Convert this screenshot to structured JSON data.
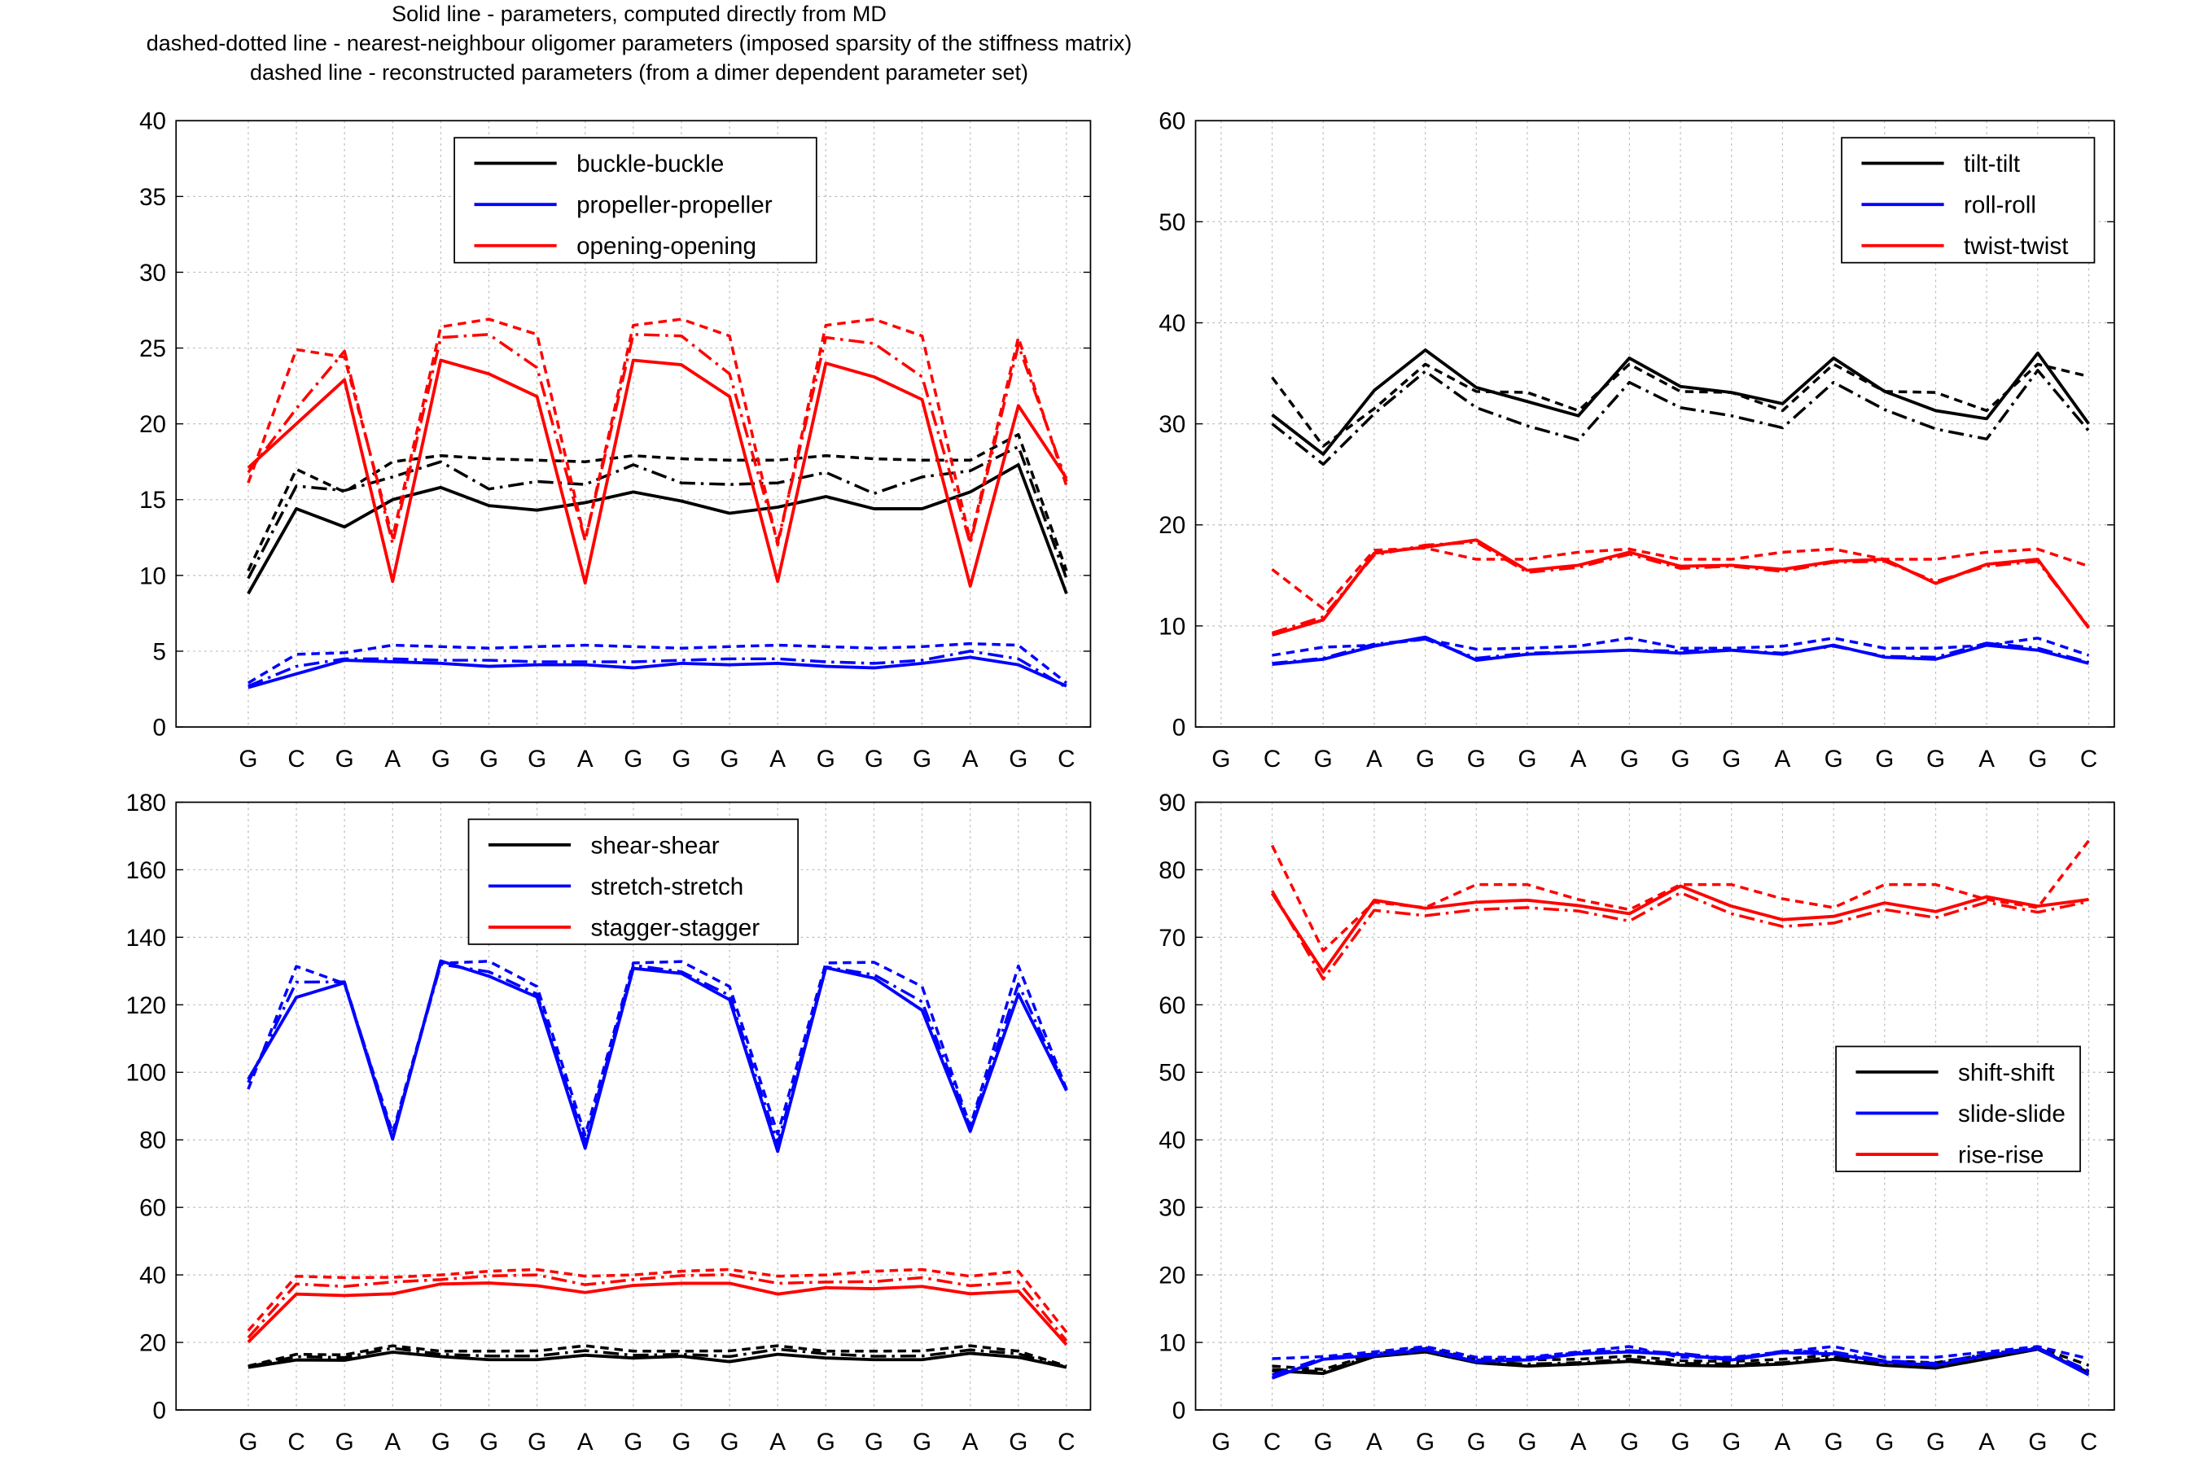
{
  "header": {
    "line1": "Solid line - parameters, computed directly from MD",
    "line2": "dashed-dotted line - nearest-neighbour oligomer parameters (imposed sparsity of the stiffness matrix)",
    "line3": "dashed line - reconstructed parameters (from a dimer dependent parameter set)"
  },
  "colors": {
    "black": "#000000",
    "blue": "#0000ff",
    "red": "#ff0000",
    "grid": "#bbbbbb"
  },
  "chart_data": [
    {
      "type": "line",
      "ylim": [
        0,
        40
      ],
      "yticks": [
        0,
        5,
        10,
        15,
        20,
        25,
        30,
        35,
        40
      ],
      "categories": [
        "G",
        "C",
        "G",
        "A",
        "G",
        "G",
        "G",
        "A",
        "G",
        "G",
        "G",
        "A",
        "G",
        "G",
        "G",
        "A",
        "G",
        "C"
      ],
      "x_start": 1,
      "grid": true,
      "legend_position": "top-center",
      "legend": [
        "buckle-buckle",
        "propeller-propeller",
        "opening-opening"
      ],
      "series": [
        {
          "name": "buckle-buckle",
          "style": "solid",
          "color": "black",
          "values": [
            8.8,
            14.4,
            13.2,
            15.0,
            15.8,
            14.6,
            14.3,
            14.8,
            15.5,
            14.9,
            14.1,
            14.5,
            15.2,
            14.4,
            14.4,
            15.5,
            17.3,
            8.8
          ]
        },
        {
          "name": "buckle-buckle",
          "style": "dashdot",
          "color": "black",
          "values": [
            9.8,
            15.9,
            15.6,
            16.5,
            17.5,
            15.7,
            16.2,
            16.0,
            17.3,
            16.1,
            16.0,
            16.1,
            16.8,
            15.4,
            16.5,
            16.9,
            18.5,
            9.8
          ]
        },
        {
          "name": "buckle-buckle",
          "style": "dashed",
          "color": "black",
          "values": [
            10.3,
            17.0,
            15.5,
            17.5,
            17.9,
            17.7,
            17.6,
            17.5,
            17.9,
            17.7,
            17.6,
            17.6,
            17.9,
            17.7,
            17.6,
            17.6,
            19.3,
            10.3
          ]
        },
        {
          "name": "propeller-propeller",
          "style": "solid",
          "color": "blue",
          "values": [
            2.6,
            3.5,
            4.4,
            4.3,
            4.2,
            4.0,
            4.1,
            4.1,
            3.9,
            4.2,
            4.1,
            4.2,
            4.0,
            3.9,
            4.2,
            4.6,
            4.1,
            2.7
          ]
        },
        {
          "name": "propeller-propeller",
          "style": "dashdot",
          "color": "blue",
          "values": [
            2.7,
            4.0,
            4.5,
            4.5,
            4.4,
            4.4,
            4.3,
            4.3,
            4.3,
            4.4,
            4.5,
            4.5,
            4.3,
            4.2,
            4.4,
            5.0,
            4.5,
            2.6
          ]
        },
        {
          "name": "propeller-propeller",
          "style": "dashed",
          "color": "blue",
          "values": [
            2.9,
            4.8,
            4.9,
            5.4,
            5.3,
            5.2,
            5.3,
            5.4,
            5.3,
            5.2,
            5.3,
            5.4,
            5.3,
            5.2,
            5.3,
            5.5,
            5.4,
            2.9
          ]
        },
        {
          "name": "opening-opening",
          "style": "solid",
          "color": "red",
          "values": [
            17.1,
            null,
            22.9,
            9.6,
            24.2,
            23.3,
            21.8,
            9.5,
            24.2,
            23.9,
            21.8,
            9.6,
            24.0,
            23.1,
            21.6,
            9.3,
            21.2,
            16.4
          ]
        },
        {
          "name": "opening-opening",
          "style": "dashdot",
          "color": "red",
          "values": [
            16.8,
            21.0,
            24.8,
            12.1,
            25.7,
            25.9,
            23.7,
            12.3,
            25.9,
            25.8,
            23.3,
            12.2,
            25.7,
            25.3,
            23.1,
            12.1,
            25.2,
            16.2
          ]
        },
        {
          "name": "opening-opening",
          "style": "dashed",
          "color": "red",
          "values": [
            16.1,
            24.9,
            24.4,
            12.5,
            26.4,
            26.9,
            25.9,
            12.3,
            26.5,
            26.9,
            25.8,
            12.0,
            26.5,
            26.9,
            25.8,
            12.3,
            25.7,
            15.9
          ]
        }
      ]
    },
    {
      "type": "line",
      "ylim": [
        0,
        60
      ],
      "yticks": [
        0,
        10,
        20,
        30,
        40,
        50,
        60
      ],
      "categories": [
        "G",
        "C",
        "G",
        "A",
        "G",
        "G",
        "G",
        "A",
        "G",
        "G",
        "G",
        "A",
        "G",
        "G",
        "G",
        "A",
        "G",
        "C"
      ],
      "x_start": 0,
      "grid": true,
      "legend_position": "top-right",
      "legend": [
        "tilt-tilt",
        "roll-roll",
        "twist-twist"
      ],
      "series": [
        {
          "name": "tilt-tilt",
          "style": "solid",
          "color": "black",
          "values": [
            null,
            30.9,
            27.0,
            33.3,
            37.3,
            33.6,
            32.2,
            30.8,
            36.5,
            33.7,
            33.1,
            32.0,
            36.5,
            33.2,
            31.3,
            30.5,
            37.0,
            30.0
          ]
        },
        {
          "name": "tilt-tilt",
          "style": "dashdot",
          "color": "black",
          "values": [
            null,
            30.0,
            26.0,
            31.0,
            35.2,
            31.6,
            29.8,
            28.4,
            34.1,
            31.6,
            30.8,
            29.6,
            34.1,
            31.4,
            29.5,
            28.5,
            35.3,
            29.3
          ]
        },
        {
          "name": "tilt-tilt",
          "style": "dashed",
          "color": "black",
          "values": [
            null,
            34.6,
            27.8,
            31.5,
            35.9,
            33.2,
            33.1,
            31.3,
            35.9,
            33.2,
            33.1,
            31.3,
            35.9,
            33.2,
            33.1,
            31.3,
            35.9,
            34.7
          ]
        },
        {
          "name": "roll-roll",
          "style": "solid",
          "color": "blue",
          "values": [
            null,
            6.2,
            6.7,
            8.0,
            8.9,
            6.6,
            7.2,
            7.4,
            7.6,
            7.3,
            7.6,
            7.2,
            8.1,
            6.9,
            6.7,
            8.1,
            7.6,
            6.3
          ]
        },
        {
          "name": "roll-roll",
          "style": "dashdot",
          "color": "blue",
          "values": [
            null,
            6.3,
            6.8,
            8.2,
            8.7,
            6.8,
            7.3,
            7.4,
            7.6,
            7.5,
            7.6,
            7.3,
            8.0,
            7.0,
            6.9,
            8.3,
            7.8,
            6.4
          ]
        },
        {
          "name": "roll-roll",
          "style": "dashed",
          "color": "blue",
          "values": [
            null,
            7.1,
            7.9,
            8.1,
            8.7,
            7.7,
            7.8,
            8.0,
            8.8,
            7.8,
            7.8,
            8.0,
            8.8,
            7.8,
            7.8,
            8.1,
            8.8,
            7.1
          ]
        },
        {
          "name": "twist-twist",
          "style": "solid",
          "color": "red",
          "values": [
            null,
            9.1,
            10.6,
            17.2,
            17.8,
            18.5,
            15.5,
            16.0,
            17.3,
            15.9,
            16.0,
            15.6,
            16.4,
            16.6,
            14.2,
            16.1,
            16.6,
            9.8
          ]
        },
        {
          "name": "twist-twist",
          "style": "dashdot",
          "color": "red",
          "values": [
            null,
            9.3,
            10.9,
            17.0,
            18.0,
            18.3,
            15.3,
            15.8,
            17.1,
            15.7,
            15.9,
            15.4,
            16.3,
            16.4,
            14.4,
            15.9,
            16.4,
            9.9
          ]
        },
        {
          "name": "twist-twist",
          "style": "dashed",
          "color": "red",
          "values": [
            null,
            15.6,
            11.7,
            17.5,
            17.7,
            16.6,
            16.6,
            17.3,
            17.6,
            16.6,
            16.6,
            17.3,
            17.6,
            16.6,
            16.6,
            17.3,
            17.6,
            15.9
          ]
        }
      ]
    },
    {
      "type": "line",
      "ylim": [
        0,
        180
      ],
      "yticks": [
        0,
        20,
        40,
        60,
        80,
        100,
        120,
        140,
        160,
        180
      ],
      "categories": [
        "G",
        "C",
        "G",
        "A",
        "G",
        "G",
        "G",
        "A",
        "G",
        "G",
        "G",
        "A",
        "G",
        "G",
        "G",
        "A",
        "G",
        "C"
      ],
      "x_start": 1,
      "grid": true,
      "legend_position": "top-center",
      "legend": [
        "shear-shear",
        "stretch-stretch",
        "stagger-stagger"
      ],
      "series": [
        {
          "name": "shear-shear",
          "style": "solid",
          "color": "black",
          "values": [
            12.6,
            14.8,
            14.7,
            17.1,
            15.8,
            14.9,
            14.9,
            16.2,
            15.4,
            15.9,
            14.3,
            16.5,
            15.4,
            14.9,
            14.9,
            16.8,
            15.6,
            12.6
          ]
        },
        {
          "name": "shear-shear",
          "style": "dashdot",
          "color": "black",
          "values": [
            12.8,
            15.8,
            15.5,
            18.3,
            16.5,
            16.0,
            16.0,
            17.6,
            16.2,
            16.5,
            15.8,
            18.0,
            16.6,
            15.9,
            16.0,
            17.8,
            16.6,
            12.7
          ]
        },
        {
          "name": "shear-shear",
          "style": "dashed",
          "color": "black",
          "values": [
            13.0,
            16.5,
            16.3,
            19.0,
            17.4,
            17.4,
            17.5,
            19.0,
            17.4,
            17.4,
            17.5,
            19.0,
            17.4,
            17.4,
            17.5,
            19.0,
            17.4,
            13.0
          ]
        },
        {
          "name": "stretch-stretch",
          "style": "solid",
          "color": "blue",
          "values": [
            97.9,
            122.2,
            126.5,
            80.2,
            133.0,
            128.5,
            122.3,
            77.5,
            130.8,
            129.3,
            121.5,
            76.6,
            131.0,
            127.9,
            118.4,
            82.5,
            123.2,
            94.6
          ]
        },
        {
          "name": "stretch-stretch",
          "style": "dashdot",
          "color": "blue",
          "values": [
            97.0,
            126.7,
            126.8,
            81.2,
            132.0,
            129.8,
            123.2,
            79.3,
            131.7,
            129.8,
            122.8,
            78.8,
            131.2,
            128.9,
            120.9,
            83.7,
            126.2,
            94.9
          ]
        },
        {
          "name": "stretch-stretch",
          "style": "dashed",
          "color": "blue",
          "values": [
            95.0,
            131.4,
            126.3,
            82.1,
            132.3,
            132.9,
            125.4,
            81.4,
            132.4,
            132.8,
            125.4,
            81.7,
            132.4,
            132.6,
            125.4,
            84.0,
            131.5,
            95.0
          ]
        },
        {
          "name": "stagger-stagger",
          "style": "solid",
          "color": "red",
          "values": [
            20.1,
            34.3,
            33.9,
            34.4,
            37.3,
            37.6,
            36.8,
            34.8,
            36.9,
            37.5,
            37.5,
            34.3,
            36.2,
            35.9,
            36.6,
            34.4,
            35.2,
            19.3
          ]
        },
        {
          "name": "stagger-stagger",
          "style": "dashdot",
          "color": "red",
          "values": [
            21.4,
            37.3,
            36.6,
            37.9,
            38.6,
            39.7,
            40.0,
            37.1,
            38.6,
            39.8,
            40.1,
            37.5,
            37.9,
            38.0,
            39.2,
            36.8,
            37.8,
            20.5
          ]
        },
        {
          "name": "stagger-stagger",
          "style": "dashed",
          "color": "red",
          "values": [
            23.5,
            39.6,
            39.2,
            39.3,
            40.0,
            41.1,
            41.6,
            39.6,
            40.0,
            41.1,
            41.6,
            39.6,
            40.0,
            41.1,
            41.6,
            39.6,
            41.1,
            23.0
          ]
        }
      ]
    },
    {
      "type": "line",
      "ylim": [
        0,
        90
      ],
      "yticks": [
        0,
        10,
        20,
        30,
        40,
        50,
        60,
        70,
        80,
        90
      ],
      "categories": [
        "G",
        "C",
        "G",
        "A",
        "G",
        "G",
        "G",
        "A",
        "G",
        "G",
        "G",
        "A",
        "G",
        "G",
        "G",
        "A",
        "G",
        "C"
      ],
      "x_start": 0,
      "grid": true,
      "legend_position": "middle-right",
      "legend": [
        "shift-shift",
        "slide-slide",
        "rise-rise"
      ],
      "series": [
        {
          "name": "shift-shift",
          "style": "solid",
          "color": "black",
          "values": [
            null,
            5.8,
            5.4,
            7.9,
            8.6,
            7.0,
            6.5,
            6.8,
            7.2,
            6.6,
            6.5,
            6.8,
            7.5,
            6.6,
            6.2,
            7.6,
            9.0,
            5.5
          ]
        },
        {
          "name": "shift-shift",
          "style": "dashdot",
          "color": "black",
          "values": [
            null,
            6.0,
            5.7,
            8.1,
            8.9,
            7.2,
            6.8,
            7.0,
            7.5,
            6.9,
            6.8,
            7.0,
            7.8,
            6.9,
            6.5,
            7.8,
            9.1,
            5.7
          ]
        },
        {
          "name": "shift-shift",
          "style": "dashed",
          "color": "black",
          "values": [
            null,
            6.5,
            6.0,
            8.3,
            9.2,
            7.6,
            7.4,
            7.5,
            8.0,
            7.3,
            7.2,
            7.5,
            8.2,
            7.3,
            7.0,
            8.2,
            9.3,
            6.6
          ]
        },
        {
          "name": "slide-slide",
          "style": "solid",
          "color": "blue",
          "values": [
            null,
            4.7,
            7.5,
            8.1,
            8.9,
            7.2,
            7.4,
            8.3,
            8.6,
            8.2,
            7.4,
            8.5,
            8.3,
            7.1,
            6.6,
            8.1,
            9.1,
            5.2
          ]
        },
        {
          "name": "slide-slide",
          "style": "dashdot",
          "color": "blue",
          "values": [
            null,
            5.2,
            7.7,
            8.3,
            9.1,
            7.4,
            7.6,
            8.5,
            8.8,
            8.4,
            7.6,
            8.7,
            8.6,
            7.3,
            6.9,
            8.3,
            9.2,
            5.8
          ]
        },
        {
          "name": "slide-slide",
          "style": "dashed",
          "color": "blue",
          "values": [
            null,
            7.6,
            7.9,
            8.6,
            9.4,
            7.8,
            7.8,
            8.6,
            9.4,
            7.8,
            7.8,
            8.6,
            9.4,
            7.8,
            7.8,
            8.6,
            9.4,
            7.6
          ]
        },
        {
          "name": "rise-rise",
          "style": "solid",
          "color": "red",
          "values": [
            null,
            76.5,
            64.9,
            75.5,
            74.3,
            75.2,
            75.5,
            74.7,
            73.5,
            77.6,
            74.6,
            72.6,
            73.1,
            75.1,
            73.8,
            76.0,
            74.6,
            75.6
          ]
        },
        {
          "name": "rise-rise",
          "style": "dashdot",
          "color": "red",
          "values": [
            null,
            76.9,
            63.8,
            74.0,
            73.2,
            74.1,
            74.4,
            73.9,
            72.4,
            76.6,
            73.5,
            71.6,
            72.1,
            74.1,
            72.9,
            75.2,
            73.7,
            75.3
          ]
        },
        {
          "name": "rise-rise",
          "style": "dashed",
          "color": "red",
          "values": [
            null,
            83.6,
            68.0,
            75.2,
            74.4,
            77.8,
            77.8,
            75.6,
            74.1,
            77.8,
            77.8,
            75.7,
            74.4,
            77.8,
            77.8,
            75.6,
            74.4,
            84.3
          ]
        }
      ]
    }
  ]
}
